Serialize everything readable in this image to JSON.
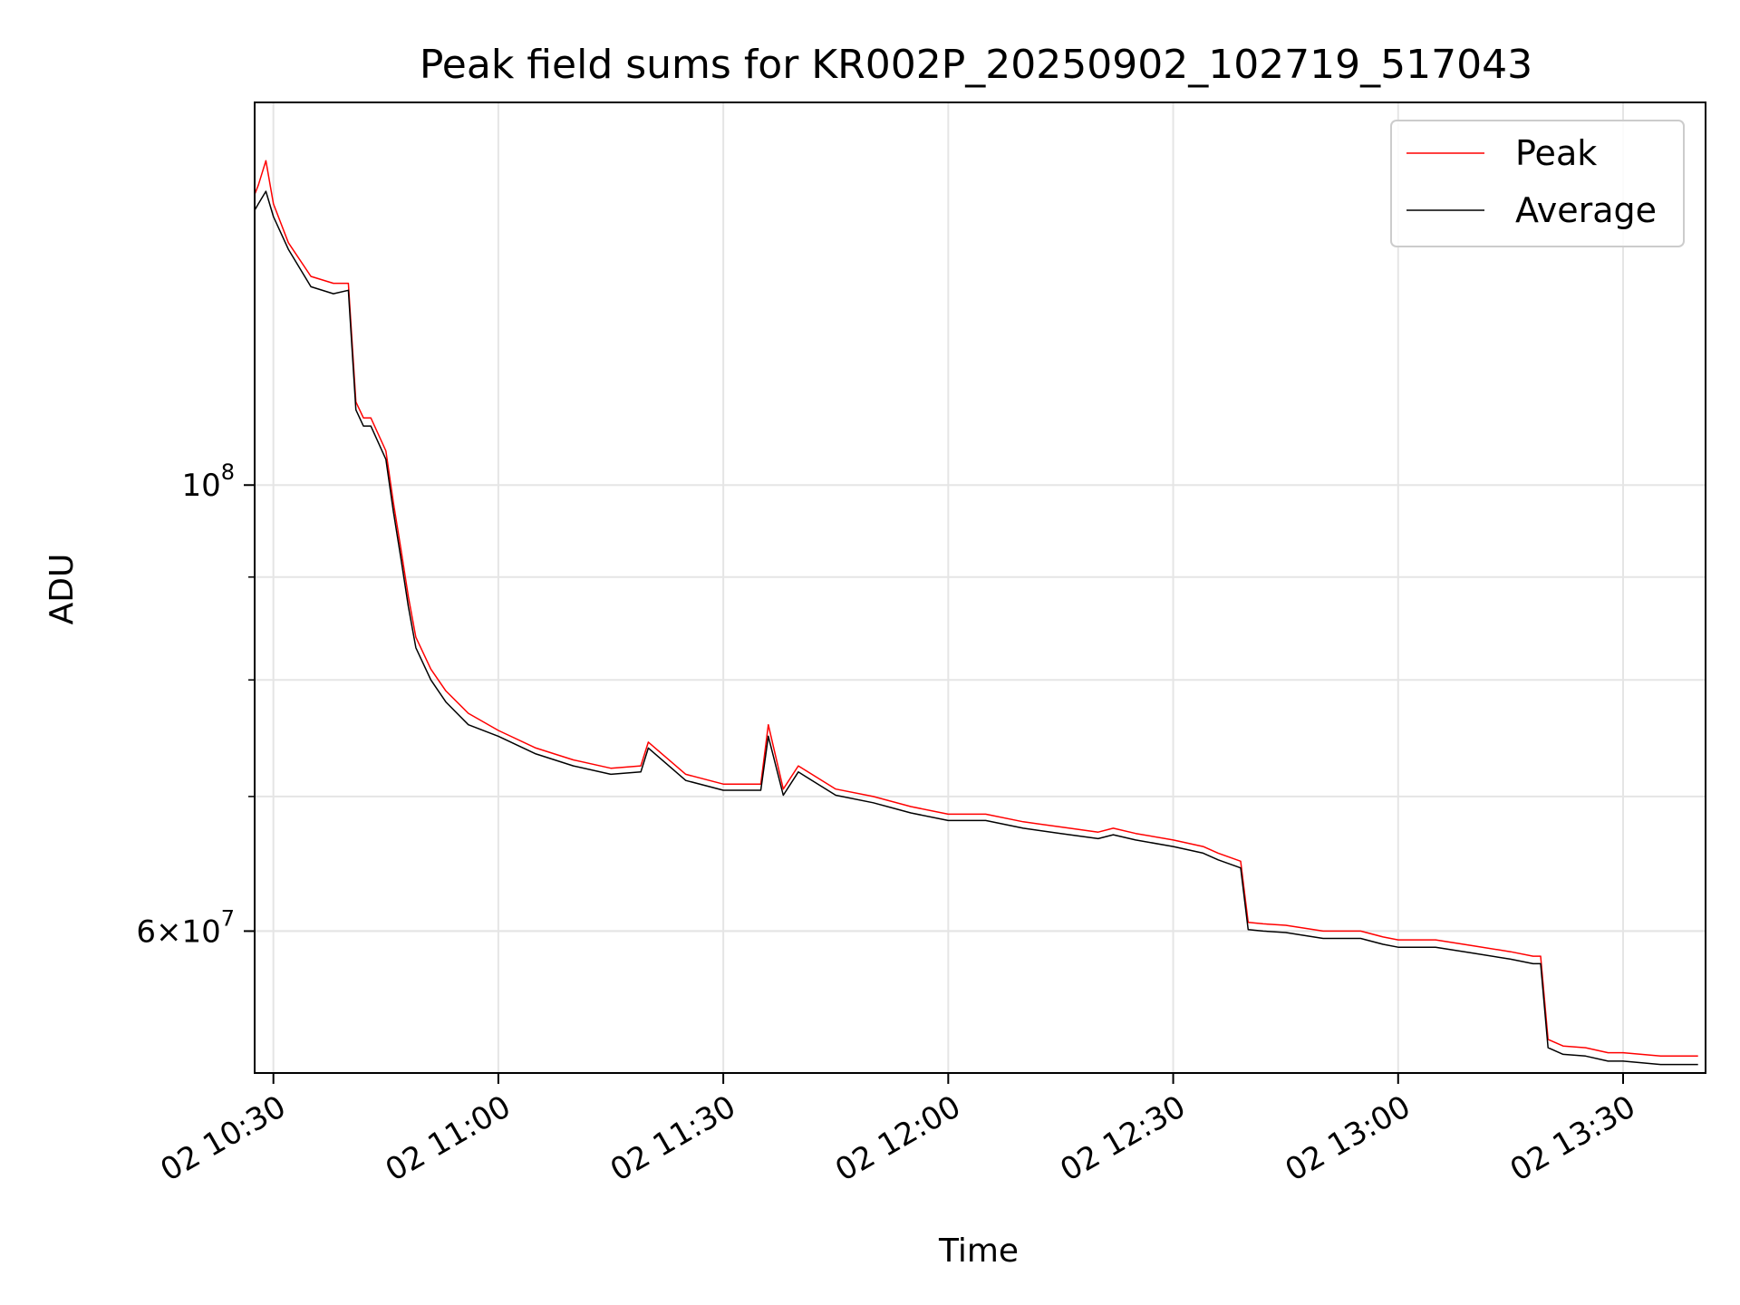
{
  "chart_data": {
    "type": "line",
    "title": "Peak field sums for KR002P_20250902_102719_517043",
    "xlabel": "Time",
    "ylabel": "ADU",
    "y_scale": "log",
    "ylim": [
      51000000,
      155000000
    ],
    "xlim": [
      "10:27:30",
      "13:41:00"
    ],
    "x_ticks": [
      "02 10:30",
      "02 11:00",
      "02 11:30",
      "02 12:00",
      "02 12:30",
      "02 13:00",
      "02 13:30"
    ],
    "y_tick_labels": [
      {
        "value": 100000000,
        "base": "10",
        "exp": "8"
      },
      {
        "value": 60000000,
        "base": "6×10",
        "exp": "7"
      }
    ],
    "grid": true,
    "legend_position": "top-right",
    "series": [
      {
        "name": "Peak",
        "color": "#ff0000",
        "x": [
          "10:27",
          "10:28",
          "10:29",
          "10:30",
          "10:32",
          "10:35",
          "10:38",
          "10:40",
          "10:41",
          "10:42",
          "10:43",
          "10:45",
          "10:46",
          "10:47",
          "10:48",
          "10:49",
          "10:51",
          "10:53",
          "10:56",
          "11:00",
          "11:05",
          "11:10",
          "11:15",
          "11:19",
          "11:20",
          "11:25",
          "11:30",
          "11:35",
          "11:36",
          "11:38",
          "11:40",
          "11:45",
          "11:50",
          "11:55",
          "12:00",
          "12:05",
          "12:10",
          "12:15",
          "12:20",
          "12:22",
          "12:25",
          "12:30",
          "12:34",
          "12:36",
          "12:39",
          "12:40",
          "12:42",
          "12:45",
          "12:50",
          "12:55",
          "12:58",
          "13:00",
          "13:02",
          "13:05",
          "13:10",
          "13:15",
          "13:18",
          "13:19",
          "13:20",
          "13:22",
          "13:25",
          "13:28",
          "13:30",
          "13:35",
          "13:40"
        ],
        "y": [
          138000000,
          141000000,
          145000000,
          138000000,
          132000000,
          127000000,
          126000000,
          126000000,
          110000000,
          108000000,
          108000000,
          104000000,
          98000000,
          93000000,
          88000000,
          84000000,
          81000000,
          79000000,
          77000000,
          75500000,
          74000000,
          73000000,
          72300000,
          72500000,
          74500000,
          71800000,
          71000000,
          71000000,
          76000000,
          70600000,
          72500000,
          70600000,
          70000000,
          69200000,
          68600000,
          68600000,
          68000000,
          67600000,
          67200000,
          67500000,
          67100000,
          66600000,
          66100000,
          65600000,
          65000000,
          60600000,
          60500000,
          60400000,
          60000000,
          60000000,
          59600000,
          59400000,
          59400000,
          59400000,
          59000000,
          58600000,
          58300000,
          58300000,
          53000000,
          52600000,
          52500000,
          52200000,
          52200000,
          52000000,
          52000000
        ]
      },
      {
        "name": "Average",
        "color": "#000000",
        "x": [
          "10:27",
          "10:28",
          "10:29",
          "10:30",
          "10:32",
          "10:35",
          "10:38",
          "10:40",
          "10:41",
          "10:42",
          "10:43",
          "10:45",
          "10:46",
          "10:47",
          "10:48",
          "10:49",
          "10:51",
          "10:53",
          "10:56",
          "11:00",
          "11:05",
          "11:10",
          "11:15",
          "11:19",
          "11:20",
          "11:25",
          "11:30",
          "11:35",
          "11:36",
          "11:38",
          "11:40",
          "11:45",
          "11:50",
          "11:55",
          "12:00",
          "12:05",
          "12:10",
          "12:15",
          "12:20",
          "12:22",
          "12:25",
          "12:30",
          "12:34",
          "12:36",
          "12:39",
          "12:40",
          "12:42",
          "12:45",
          "12:50",
          "12:55",
          "12:58",
          "13:00",
          "13:02",
          "13:05",
          "13:10",
          "13:15",
          "13:18",
          "13:19",
          "13:20",
          "13:22",
          "13:25",
          "13:28",
          "13:30",
          "13:35",
          "13:40"
        ],
        "y": [
          136000000,
          138000000,
          140000000,
          136000000,
          131000000,
          125500000,
          124500000,
          125000000,
          109000000,
          107000000,
          107000000,
          103000000,
          97000000,
          92000000,
          87000000,
          83000000,
          80000000,
          78000000,
          76000000,
          75000000,
          73500000,
          72500000,
          71800000,
          72000000,
          74000000,
          71300000,
          70500000,
          70500000,
          75000000,
          70100000,
          72000000,
          70100000,
          69500000,
          68700000,
          68100000,
          68100000,
          67500000,
          67100000,
          66700000,
          67000000,
          66600000,
          66100000,
          65600000,
          65100000,
          64500000,
          60100000,
          60000000,
          59900000,
          59500000,
          59500000,
          59100000,
          58900000,
          58900000,
          58900000,
          58500000,
          58100000,
          57800000,
          57800000,
          52500000,
          52100000,
          52000000,
          51700000,
          51700000,
          51500000,
          51500000
        ]
      }
    ]
  }
}
